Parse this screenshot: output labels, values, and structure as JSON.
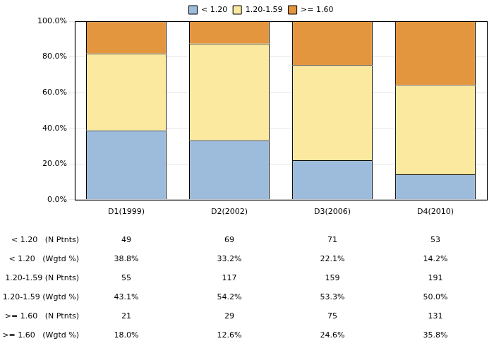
{
  "chart_data": {
    "type": "bar",
    "stacked": true,
    "grid": true,
    "legend": "top",
    "categories": [
      "D1(1999)",
      "D2(2002)",
      "D3(2006)",
      "D4(2010)"
    ],
    "series": [
      {
        "name": "< 1.20",
        "color": "#9dbcdb",
        "values": [
          38.8,
          33.2,
          22.1,
          14.2
        ]
      },
      {
        "name": "1.20-1.59",
        "color": "#fbe9a0",
        "values": [
          43.1,
          54.2,
          53.3,
          50.0
        ]
      },
      {
        "name": ">= 1.60",
        "color": "#e4963f",
        "values": [
          18.0,
          12.6,
          24.6,
          35.8
        ]
      }
    ],
    "ylim": [
      0,
      100
    ],
    "yticks": [
      {
        "value": 0,
        "label": "0.0%"
      },
      {
        "value": 20,
        "label": "20.0%"
      },
      {
        "value": 40,
        "label": "40.0%"
      },
      {
        "value": 60,
        "label": "60.0%"
      },
      {
        "value": 80,
        "label": "80.0%"
      },
      {
        "value": 100,
        "label": "100.0%"
      }
    ]
  },
  "table": {
    "rows": [
      {
        "label": "< 1.20   (N Ptnts)",
        "cells": [
          "49",
          "69",
          "71",
          "53"
        ]
      },
      {
        "label": "< 1.20   (Wgtd %)",
        "cells": [
          "38.8%",
          "33.2%",
          "22.1%",
          "14.2%"
        ]
      },
      {
        "label": "1.20-1.59 (N Ptnts)",
        "cells": [
          "55",
          "117",
          "159",
          "191"
        ]
      },
      {
        "label": "1.20-1.59 (Wgtd %)",
        "cells": [
          "43.1%",
          "54.2%",
          "53.3%",
          "50.0%"
        ]
      },
      {
        "label": ">= 1.60   (N Ptnts)",
        "cells": [
          "21",
          "29",
          "75",
          "131"
        ]
      },
      {
        "label": ">= 1.60   (Wgtd %)",
        "cells": [
          "18.0%",
          "12.6%",
          "24.6%",
          "35.8%"
        ]
      }
    ]
  }
}
